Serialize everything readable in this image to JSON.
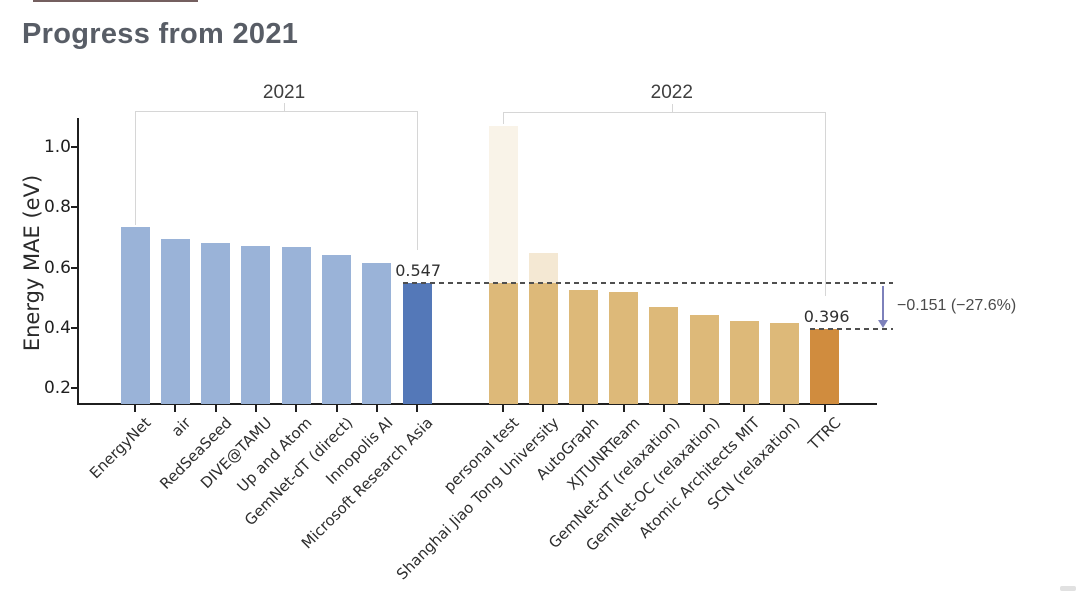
{
  "slide": {
    "title": "Progress from 2021"
  },
  "chart_data": {
    "type": "bar",
    "title": "Progress from 2021",
    "xlabel": "",
    "ylabel": "Energy MAE (eV)",
    "yticks": [
      "0.2",
      "0.4",
      "0.6",
      "0.8",
      "1.0"
    ],
    "ylim": [
      0.15,
      1.1
    ],
    "grid": false,
    "legend": "none",
    "groups": [
      {
        "label": "2021",
        "bars": [
          {
            "name": "EnergyNet",
            "value": 0.735
          },
          {
            "name": "air",
            "value": 0.695
          },
          {
            "name": "RedSeaSeed",
            "value": 0.68
          },
          {
            "name": "DIVE@TAMU",
            "value": 0.672
          },
          {
            "name": "Up and Atom",
            "value": 0.668
          },
          {
            "name": "GemNet-dT (direct)",
            "value": 0.64
          },
          {
            "name": "Innopolis AI",
            "value": 0.615
          },
          {
            "name": "Microsoft Research Asia",
            "value": 0.547,
            "highlight": true,
            "value_label": "0.547"
          }
        ]
      },
      {
        "label": "2022",
        "bars": [
          {
            "name": "personal test",
            "value": 1.07,
            "fade_above": 0.547,
            "fade_opacity": 0.17
          },
          {
            "name": "Shanghai Jiao Tong University",
            "value": 0.648,
            "fade_above": 0.547,
            "fade_opacity": 0.32
          },
          {
            "name": "AutoGraph",
            "value": 0.525
          },
          {
            "name": "XJTUNRTeam",
            "value": 0.52
          },
          {
            "name": "GemNet-dT (relaxation)",
            "value": 0.469
          },
          {
            "name": "GemNet-OC (relaxation)",
            "value": 0.443
          },
          {
            "name": "Atomic Architects MIT",
            "value": 0.424
          },
          {
            "name": "SCN (relaxation)",
            "value": 0.417
          },
          {
            "name": "TTRC",
            "value": 0.396,
            "highlight": true,
            "value_label": "0.396"
          }
        ]
      }
    ],
    "reference_lines": [
      {
        "value": 0.547,
        "style": "dashed"
      },
      {
        "value": 0.396,
        "style": "dashed"
      }
    ],
    "delta_annotation": {
      "label": "−0.151 (−27.6%)",
      "from": 0.547,
      "to": 0.396
    },
    "colors": {
      "bar_2021": "#9ab3d8",
      "bar_2021_highlight": "#5478b8",
      "bar_2022": "#ddb979",
      "bar_2022_highlight": "#d08c3e",
      "dashed_line": "#4f4f4f",
      "arrow": "#7d81bb",
      "axis": "#1f1f1f",
      "bracket": "#d6d6d6",
      "title_text": "#585d66"
    }
  }
}
